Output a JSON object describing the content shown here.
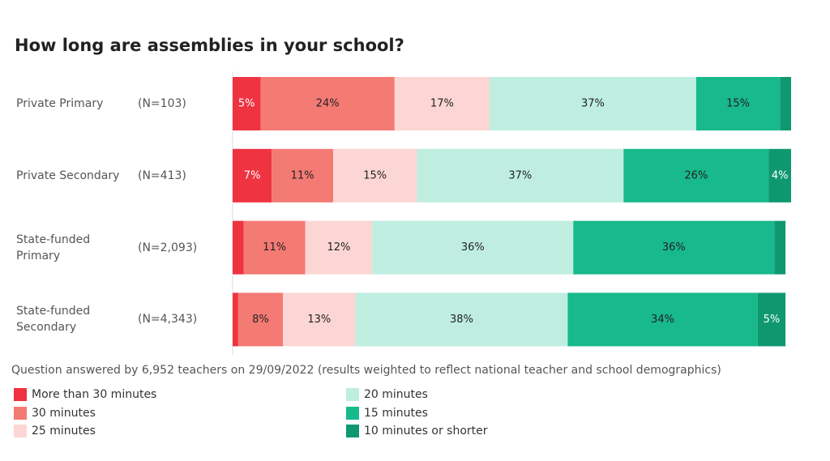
{
  "chart_data": {
    "type": "stacked-barh",
    "title": "How long are assemblies in your school?",
    "categories": [
      "Private Primary",
      "Private Secondary",
      "State-funded Primary",
      "State-funded Secondary"
    ],
    "n_labels": [
      "(N=103)",
      "(N=413)",
      "(N=2,093)",
      "(N=4,343)"
    ],
    "series": [
      {
        "name": "More than 30 minutes",
        "color": "#ef3340",
        "values": [
          5,
          7,
          2,
          1
        ],
        "value_labels": [
          "5%",
          "7%",
          null,
          null
        ]
      },
      {
        "name": "30 minutes",
        "color": "#f47a74",
        "values": [
          24,
          11,
          11,
          8
        ],
        "value_labels": [
          "24%",
          "11%",
          "11%",
          "8%"
        ]
      },
      {
        "name": "25 minutes",
        "color": "#fcd6d4",
        "values": [
          17,
          15,
          12,
          13
        ],
        "value_labels": [
          "17%",
          "15%",
          "12%",
          "13%"
        ]
      },
      {
        "name": "20 minutes",
        "color": "#bfeee1",
        "values": [
          37,
          37,
          36,
          38
        ],
        "value_labels": [
          "37%",
          "37%",
          "36%",
          "38%"
        ]
      },
      {
        "name": "15 minutes",
        "color": "#18b98c",
        "values": [
          15,
          26,
          36,
          34
        ],
        "value_labels": [
          "15%",
          "26%",
          "36%",
          "34%"
        ]
      },
      {
        "name": "10 minutes or shorter",
        "color": "#0f9870",
        "values": [
          2,
          4,
          2,
          5
        ],
        "value_labels": [
          null,
          "4%",
          null,
          "5%"
        ]
      }
    ],
    "xlim": [
      0,
      100
    ],
    "note": "Question answered by 6,952 teachers on 29/09/2022 (results weighted to reflect national teacher and school demographics)"
  }
}
